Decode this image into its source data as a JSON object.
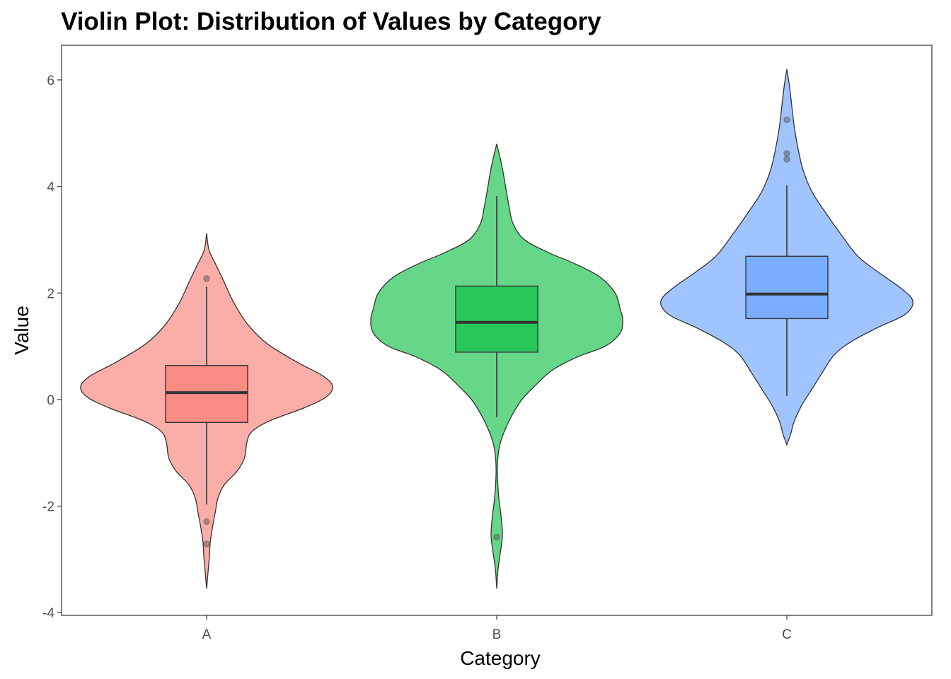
{
  "chart_data": {
    "type": "violin",
    "title": "Violin Plot: Distribution of Values by Category",
    "xlabel": "Category",
    "ylabel": "Value",
    "ylim": [
      -4.05,
      6.65
    ],
    "yticks": [
      -4,
      -2,
      0,
      2,
      4,
      6
    ],
    "categories": [
      "A",
      "B",
      "C"
    ],
    "grid": false,
    "legend": "none",
    "colors": {
      "A": "#F8766D",
      "B": "#00BA38",
      "C": "#619CFF"
    },
    "violin_alpha": 0.6,
    "box_alpha": 0.6,
    "series": [
      {
        "category": "A",
        "box": {
          "whisker_low": -1.97,
          "q1": -0.43,
          "median": 0.13,
          "q3": 0.64,
          "whisker_high": 2.12
        },
        "outliers": [
          2.27,
          -2.29,
          -2.71
        ],
        "density": [
          [
            3.12,
            0.0
          ],
          [
            2.8,
            0.02
          ],
          [
            2.5,
            0.08
          ],
          [
            2.2,
            0.14
          ],
          [
            1.8,
            0.22
          ],
          [
            1.4,
            0.33
          ],
          [
            1.05,
            0.48
          ],
          [
            0.7,
            0.72
          ],
          [
            0.45,
            0.92
          ],
          [
            0.25,
            1.0
          ],
          [
            0.05,
            0.95
          ],
          [
            -0.15,
            0.78
          ],
          [
            -0.4,
            0.5
          ],
          [
            -0.6,
            0.36
          ],
          [
            -0.8,
            0.32
          ],
          [
            -1.1,
            0.3
          ],
          [
            -1.35,
            0.24
          ],
          [
            -1.6,
            0.14
          ],
          [
            -1.85,
            0.09
          ],
          [
            -2.1,
            0.07
          ],
          [
            -2.35,
            0.05
          ],
          [
            -2.65,
            0.03
          ],
          [
            -3.0,
            0.02
          ],
          [
            -3.55,
            0.0
          ]
        ]
      },
      {
        "category": "B",
        "box": {
          "whisker_low": -0.33,
          "q1": 0.89,
          "median": 1.45,
          "q3": 2.13,
          "whisker_high": 3.82
        },
        "outliers": [
          -2.58
        ],
        "density": [
          [
            4.8,
            0.0
          ],
          [
            4.4,
            0.04
          ],
          [
            4.0,
            0.07
          ],
          [
            3.6,
            0.1
          ],
          [
            3.3,
            0.13
          ],
          [
            3.0,
            0.22
          ],
          [
            2.75,
            0.42
          ],
          [
            2.55,
            0.62
          ],
          [
            2.3,
            0.82
          ],
          [
            2.0,
            0.94
          ],
          [
            1.7,
            0.98
          ],
          [
            1.5,
            1.0
          ],
          [
            1.25,
            0.98
          ],
          [
            1.0,
            0.86
          ],
          [
            0.8,
            0.64
          ],
          [
            0.55,
            0.44
          ],
          [
            0.25,
            0.3
          ],
          [
            0.0,
            0.2
          ],
          [
            -0.3,
            0.12
          ],
          [
            -0.6,
            0.06
          ],
          [
            -0.9,
            0.02
          ],
          [
            -1.3,
            0.005
          ],
          [
            -1.8,
            0.015
          ],
          [
            -2.2,
            0.035
          ],
          [
            -2.55,
            0.045
          ],
          [
            -2.85,
            0.03
          ],
          [
            -3.2,
            0.01
          ],
          [
            -3.55,
            0.0
          ]
        ]
      },
      {
        "category": "C",
        "box": {
          "whisker_low": 0.07,
          "q1": 1.52,
          "median": 1.98,
          "q3": 2.69,
          "whisker_high": 4.02
        },
        "outliers": [
          5.25,
          4.62,
          4.51
        ],
        "density": [
          [
            6.2,
            0.0
          ],
          [
            5.9,
            0.02
          ],
          [
            5.5,
            0.04
          ],
          [
            5.1,
            0.06
          ],
          [
            4.7,
            0.09
          ],
          [
            4.3,
            0.13
          ],
          [
            3.9,
            0.2
          ],
          [
            3.5,
            0.31
          ],
          [
            3.1,
            0.43
          ],
          [
            2.7,
            0.56
          ],
          [
            2.4,
            0.72
          ],
          [
            2.1,
            0.9
          ],
          [
            1.85,
            1.0
          ],
          [
            1.6,
            0.94
          ],
          [
            1.35,
            0.72
          ],
          [
            1.1,
            0.52
          ],
          [
            0.85,
            0.38
          ],
          [
            0.5,
            0.28
          ],
          [
            0.2,
            0.2
          ],
          [
            -0.1,
            0.12
          ],
          [
            -0.4,
            0.06
          ],
          [
            -0.65,
            0.03
          ],
          [
            -0.85,
            0.0
          ]
        ]
      }
    ]
  }
}
